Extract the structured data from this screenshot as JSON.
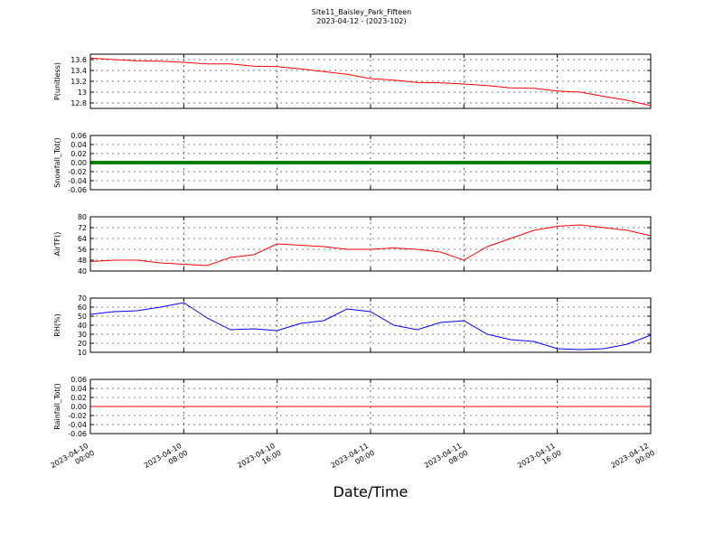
{
  "title": "Site11_Baisley_Park_Fifteen",
  "subtitle": "2023-04-12 - (2023-102)",
  "xlabel": "Date/Time",
  "xlim": [
    "2023-04-10 00:00",
    "2023-04-12 00:00"
  ],
  "xticks": [
    "2023-04-10 00:00",
    "2023-04-10 08:00",
    "2023-04-10 16:00",
    "2023-04-11 00:00",
    "2023-04-11 08:00",
    "2023-04-11 16:00",
    "2023-04-12 00:00"
  ],
  "grid": true,
  "chart_data": [
    {
      "type": "line",
      "ylabel": "P(unitless)",
      "color": "#ff0000",
      "x": [
        "2023-04-10 00:00",
        "2023-04-10 02:00",
        "2023-04-10 04:00",
        "2023-04-10 06:00",
        "2023-04-10 08:00",
        "2023-04-10 10:00",
        "2023-04-10 12:00",
        "2023-04-10 14:00",
        "2023-04-10 16:00",
        "2023-04-10 18:00",
        "2023-04-10 20:00",
        "2023-04-10 22:00",
        "2023-04-11 00:00",
        "2023-04-11 02:00",
        "2023-04-11 04:00",
        "2023-04-11 06:00",
        "2023-04-11 08:00",
        "2023-04-11 10:00",
        "2023-04-11 12:00",
        "2023-04-11 14:00",
        "2023-04-11 16:00",
        "2023-04-11 18:00",
        "2023-04-11 20:00",
        "2023-04-11 22:00",
        "2023-04-12 00:00"
      ],
      "values": [
        13.63,
        13.6,
        13.58,
        13.57,
        13.55,
        13.52,
        13.52,
        13.48,
        13.47,
        13.43,
        13.38,
        13.33,
        13.25,
        13.22,
        13.18,
        13.17,
        13.15,
        13.12,
        13.08,
        13.07,
        13.02,
        13.0,
        12.92,
        12.85,
        12.75
      ],
      "ylim": [
        12.7,
        13.7
      ],
      "yticks": [
        12.8,
        13.0,
        13.2,
        13.4,
        13.6
      ]
    },
    {
      "type": "line",
      "ylabel": "Snowfall_Tot()",
      "color": "#008000",
      "thick": true,
      "x": [
        "2023-04-10 00:00",
        "2023-04-10 02:00",
        "2023-04-10 04:00",
        "2023-04-10 06:00",
        "2023-04-10 08:00",
        "2023-04-10 10:00",
        "2023-04-10 12:00",
        "2023-04-10 14:00",
        "2023-04-10 16:00",
        "2023-04-10 18:00",
        "2023-04-10 20:00",
        "2023-04-10 22:00",
        "2023-04-11 00:00",
        "2023-04-11 02:00",
        "2023-04-11 04:00",
        "2023-04-11 06:00",
        "2023-04-11 08:00",
        "2023-04-11 10:00",
        "2023-04-11 12:00",
        "2023-04-11 14:00",
        "2023-04-11 16:00",
        "2023-04-11 18:00",
        "2023-04-11 20:00",
        "2023-04-11 22:00",
        "2023-04-12 00:00"
      ],
      "values": [
        0,
        0,
        0,
        0,
        0,
        0,
        0,
        0,
        0,
        0,
        0,
        0,
        0,
        0,
        0,
        0,
        0,
        0,
        0,
        0,
        0,
        0,
        0,
        0,
        0
      ],
      "ylim": [
        -0.06,
        0.06
      ],
      "yticks": [
        -0.06,
        -0.04,
        -0.02,
        {
          "value": 0,
          "label": "0.00"
        },
        0.02,
        0.04,
        0.06
      ]
    },
    {
      "type": "line",
      "ylabel": "AirTF()",
      "color": "#ff0000",
      "x": [
        "2023-04-10 00:00",
        "2023-04-10 02:00",
        "2023-04-10 04:00",
        "2023-04-10 06:00",
        "2023-04-10 08:00",
        "2023-04-10 10:00",
        "2023-04-10 12:00",
        "2023-04-10 14:00",
        "2023-04-10 16:00",
        "2023-04-10 18:00",
        "2023-04-10 20:00",
        "2023-04-10 22:00",
        "2023-04-11 00:00",
        "2023-04-11 02:00",
        "2023-04-11 04:00",
        "2023-04-11 06:00",
        "2023-04-11 08:00",
        "2023-04-11 10:00",
        "2023-04-11 12:00",
        "2023-04-11 14:00",
        "2023-04-11 16:00",
        "2023-04-11 18:00",
        "2023-04-11 20:00",
        "2023-04-11 22:00",
        "2023-04-12 00:00"
      ],
      "values": [
        47,
        48,
        48,
        46,
        45,
        44,
        50,
        52,
        60,
        59,
        58,
        56,
        56,
        57,
        56,
        54,
        48,
        58,
        64,
        70,
        73,
        74,
        72,
        70,
        66
      ],
      "ylim": [
        40,
        80
      ],
      "yticks": [
        40,
        48,
        56,
        64,
        72,
        80
      ]
    },
    {
      "type": "line",
      "ylabel": "RH(%)",
      "color": "#0000ff",
      "x": [
        "2023-04-10 00:00",
        "2023-04-10 02:00",
        "2023-04-10 04:00",
        "2023-04-10 06:00",
        "2023-04-10 08:00",
        "2023-04-10 10:00",
        "2023-04-10 12:00",
        "2023-04-10 14:00",
        "2023-04-10 16:00",
        "2023-04-10 18:00",
        "2023-04-10 20:00",
        "2023-04-10 22:00",
        "2023-04-11 00:00",
        "2023-04-11 02:00",
        "2023-04-11 04:00",
        "2023-04-11 06:00",
        "2023-04-11 08:00",
        "2023-04-11 10:00",
        "2023-04-11 12:00",
        "2023-04-11 14:00",
        "2023-04-11 16:00",
        "2023-04-11 18:00",
        "2023-04-11 20:00",
        "2023-04-11 22:00",
        "2023-04-12 00:00"
      ],
      "values": [
        52,
        55,
        56,
        60,
        65,
        48,
        35,
        36,
        34,
        42,
        45,
        58,
        55,
        40,
        35,
        43,
        45,
        30,
        24,
        22,
        14,
        13,
        14,
        19,
        29
      ],
      "ylim": [
        10,
        70
      ],
      "yticks": [
        10,
        20,
        30,
        40,
        50,
        60,
        70
      ]
    },
    {
      "type": "line",
      "ylabel": "Rainfall_Tot()",
      "color": "#ff0000",
      "x": [
        "2023-04-10 00:00",
        "2023-04-10 02:00",
        "2023-04-10 04:00",
        "2023-04-10 06:00",
        "2023-04-10 08:00",
        "2023-04-10 10:00",
        "2023-04-10 12:00",
        "2023-04-10 14:00",
        "2023-04-10 16:00",
        "2023-04-10 18:00",
        "2023-04-10 20:00",
        "2023-04-10 22:00",
        "2023-04-11 00:00",
        "2023-04-11 02:00",
        "2023-04-11 04:00",
        "2023-04-11 06:00",
        "2023-04-11 08:00",
        "2023-04-11 10:00",
        "2023-04-11 12:00",
        "2023-04-11 14:00",
        "2023-04-11 16:00",
        "2023-04-11 18:00",
        "2023-04-11 20:00",
        "2023-04-11 22:00",
        "2023-04-12 00:00"
      ],
      "values": [
        0,
        0,
        0,
        0,
        0,
        0,
        0,
        0,
        0,
        0,
        0,
        0,
        0,
        0,
        0,
        0,
        0,
        0,
        0,
        0,
        0,
        0,
        0,
        0,
        0
      ],
      "ylim": [
        -0.06,
        0.06
      ],
      "yticks": [
        -0.06,
        -0.04,
        -0.02,
        {
          "value": 0,
          "label": "0.00"
        },
        0.02,
        0.04,
        0.06
      ]
    }
  ]
}
